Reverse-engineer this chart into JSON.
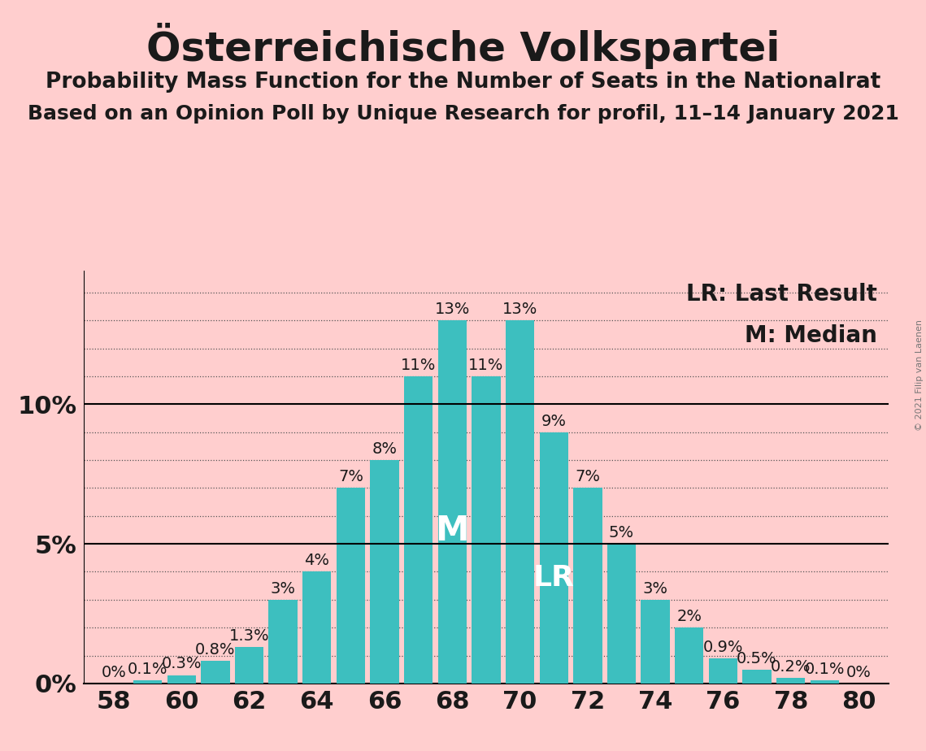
{
  "title": "Österreichische Volkspartei",
  "subtitle1": "Probability Mass Function for the Number of Seats in the Nationalrat",
  "subtitle2": "Based on an Opinion Poll by Unique Research for profil, 11–14 January 2021",
  "copyright": "© 2021 Filip van Laenen",
  "seats": [
    58,
    59,
    60,
    61,
    62,
    63,
    64,
    65,
    66,
    67,
    68,
    69,
    70,
    71,
    72,
    73,
    74,
    75,
    76,
    77,
    78,
    79,
    80
  ],
  "probabilities": [
    0.0,
    0.1,
    0.3,
    0.8,
    1.3,
    3.0,
    4.0,
    7.0,
    8.0,
    11.0,
    13.0,
    11.0,
    13.0,
    9.0,
    7.0,
    5.0,
    3.0,
    2.0,
    0.9,
    0.5,
    0.2,
    0.1,
    0.0
  ],
  "bar_color": "#3dbfbf",
  "background_color": "#ffcece",
  "median_seat": 68,
  "last_result_seat": 71,
  "legend_lr": "LR: Last Result",
  "legend_m": "M: Median",
  "xtick_step": 2,
  "title_fontsize": 36,
  "subtitle1_fontsize": 19,
  "subtitle2_fontsize": 18,
  "axis_fontsize": 22,
  "bar_label_fontsize": 14,
  "legend_fontsize": 20,
  "watermark_fontsize": 8,
  "ylim": [
    0,
    14.8
  ],
  "solid_lines": [
    5,
    10
  ],
  "dotted_lines": [
    1,
    2,
    3,
    4,
    6,
    7,
    8,
    9,
    11,
    12,
    13,
    14
  ]
}
